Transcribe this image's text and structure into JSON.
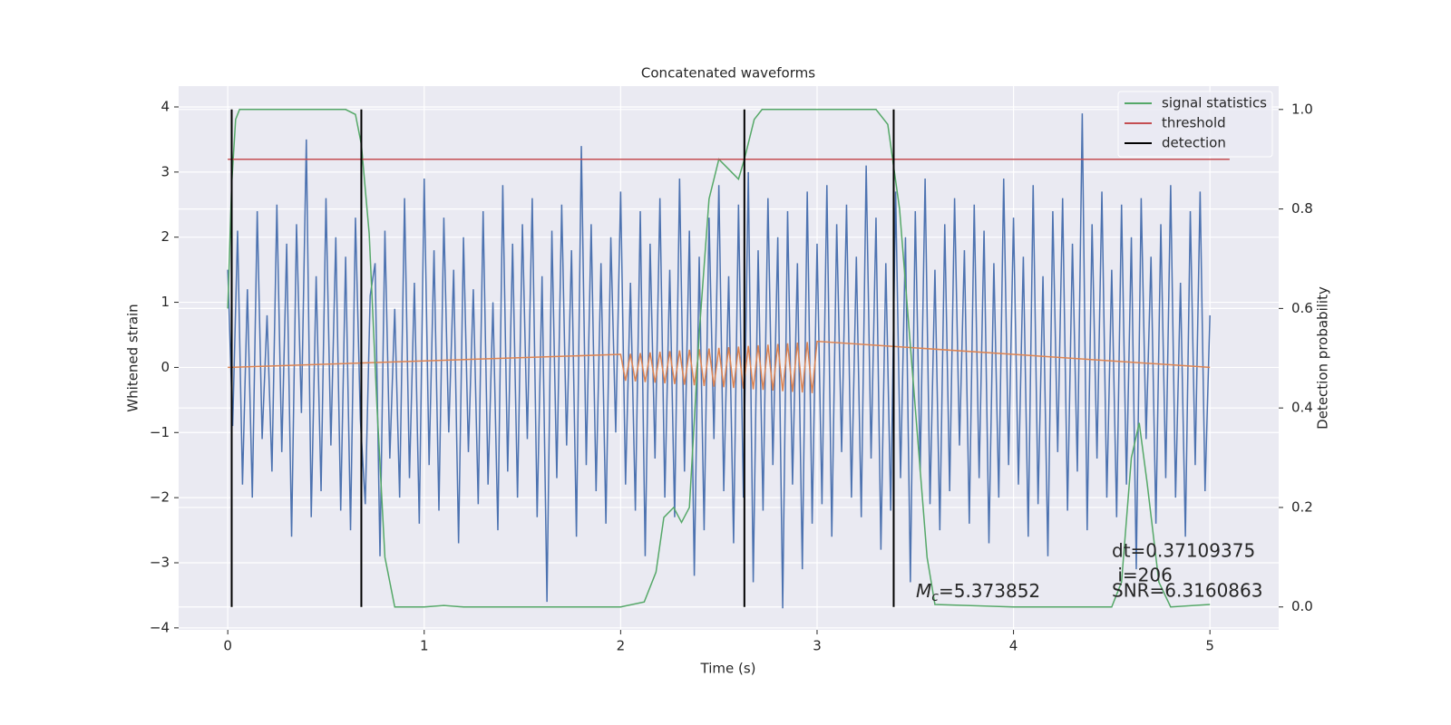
{
  "chart_data": {
    "type": "line",
    "title": "Concatenated waveforms",
    "x_label": "Time (s)",
    "y_label": "Whitened strain",
    "y2_label": "Detection probability",
    "xlim": [
      -0.25,
      5.35
    ],
    "ylim": [
      -4.03,
      4.32
    ],
    "y2lim": [
      -0.046,
      1.047
    ],
    "xticks": [
      0,
      1,
      2,
      3,
      4,
      5
    ],
    "yticks": [
      {
        "value": -4,
        "label": "−4"
      },
      {
        "value": -3,
        "label": "−3"
      },
      {
        "value": -2,
        "label": "−2"
      },
      {
        "value": -1,
        "label": "−1"
      },
      0,
      1,
      2,
      3,
      4
    ],
    "y2ticks": [
      {
        "value": 0,
        "label": "0.0"
      },
      0.2,
      0.4,
      0.6,
      0.8,
      {
        "value": 1,
        "label": "1.0"
      }
    ],
    "grid": true,
    "legend": "upper right",
    "series": [
      {
        "color": "#4c72b0",
        "x": [
          0,
          0.025,
          0.05,
          0.075,
          0.1,
          0.125,
          0.15,
          0.175,
          0.2,
          0.225,
          0.25,
          0.275,
          0.3,
          0.325,
          0.35,
          0.375,
          0.4,
          0.425,
          0.45,
          0.475,
          0.5,
          0.525,
          0.55,
          0.575,
          0.6,
          0.625,
          0.65,
          0.675,
          0.7,
          0.725,
          0.75,
          0.775,
          0.8,
          0.825,
          0.85,
          0.875,
          0.9,
          0.925,
          0.95,
          0.975,
          1,
          1.025,
          1.05,
          1.075,
          1.1,
          1.125,
          1.15,
          1.175,
          1.2,
          1.225,
          1.25,
          1.275,
          1.3,
          1.325,
          1.35,
          1.375,
          1.4,
          1.425,
          1.45,
          1.475,
          1.5,
          1.525,
          1.55,
          1.575,
          1.6,
          1.625,
          1.65,
          1.675,
          1.7,
          1.725,
          1.75,
          1.775,
          1.8,
          1.825,
          1.85,
          1.875,
          1.9,
          1.925,
          1.95,
          1.975,
          2,
          2.025,
          2.05,
          2.075,
          2.1,
          2.125,
          2.15,
          2.175,
          2.2,
          2.225,
          2.25,
          2.275,
          2.3,
          2.325,
          2.35,
          2.375,
          2.4,
          2.425,
          2.45,
          2.475,
          2.5,
          2.525,
          2.55,
          2.575,
          2.6,
          2.625,
          2.65,
          2.675,
          2.7,
          2.725,
          2.75,
          2.775,
          2.8,
          2.825,
          2.85,
          2.875,
          2.9,
          2.925,
          2.95,
          2.975,
          3,
          3.025,
          3.05,
          3.075,
          3.1,
          3.125,
          3.15,
          3.175,
          3.2,
          3.225,
          3.25,
          3.275,
          3.3,
          3.325,
          3.35,
          3.375,
          3.4,
          3.425,
          3.45,
          3.475,
          3.5,
          3.525,
          3.55,
          3.575,
          3.6,
          3.625,
          3.65,
          3.675,
          3.7,
          3.725,
          3.75,
          3.775,
          3.8,
          3.825,
          3.85,
          3.875,
          3.9,
          3.925,
          3.95,
          3.975,
          4,
          4.025,
          4.05,
          4.075,
          4.1,
          4.125,
          4.15,
          4.175,
          4.2,
          4.225,
          4.25,
          4.275,
          4.3,
          4.325,
          4.35,
          4.375,
          4.4,
          4.425,
          4.45,
          4.475,
          4.5,
          4.525,
          4.55,
          4.575,
          4.6,
          4.625,
          4.65,
          4.675,
          4.7,
          4.725,
          4.75,
          4.775,
          4.8,
          4.825,
          4.85,
          4.875,
          4.9,
          4.925,
          4.95,
          4.975,
          5
        ],
        "values": [
          1.5,
          -0.9,
          2.1,
          -1.8,
          1.2,
          -2.0,
          2.4,
          -1.1,
          0.8,
          -1.6,
          2.5,
          -1.3,
          1.9,
          -2.6,
          2.2,
          -0.7,
          3.5,
          -2.3,
          1.4,
          -1.9,
          2.6,
          -1.2,
          2.0,
          -2.2,
          1.7,
          -2.5,
          2.3,
          -0.8,
          -2.1,
          1.1,
          1.6,
          -2.9,
          2.1,
          -1.4,
          0.9,
          -2.0,
          2.6,
          -1.7,
          1.3,
          -2.4,
          2.9,
          -1.5,
          1.8,
          -2.2,
          2.3,
          -1.0,
          1.5,
          -2.7,
          2.0,
          -1.3,
          1.2,
          -2.1,
          2.4,
          -1.8,
          1.0,
          -2.5,
          2.8,
          -1.6,
          1.9,
          -2.0,
          2.2,
          -1.1,
          2.6,
          -2.3,
          1.4,
          -3.6,
          2.1,
          -1.7,
          2.5,
          -1.2,
          1.8,
          -2.6,
          3.4,
          -1.5,
          2.2,
          -1.9,
          1.6,
          -2.4,
          2.0,
          -1.0,
          2.7,
          -1.8,
          1.3,
          -2.2,
          2.4,
          -2.9,
          1.9,
          -1.4,
          2.6,
          -2.0,
          1.5,
          -2.3,
          2.9,
          -1.6,
          2.1,
          -3.2,
          1.7,
          -2.5,
          2.3,
          -1.1,
          2.8,
          -1.9,
          1.4,
          -2.7,
          2.5,
          -2.0,
          3.0,
          -3.3,
          1.8,
          -2.2,
          2.6,
          -1.5,
          2.0,
          -3.7,
          2.4,
          -1.8,
          1.6,
          -3.1,
          2.7,
          -2.4,
          1.9,
          -2.1,
          2.8,
          -2.6,
          2.2,
          -1.3,
          2.5,
          -2.0,
          1.7,
          -2.3,
          3.1,
          -1.4,
          2.3,
          -2.8,
          1.6,
          -2.2,
          2.7,
          -1.7,
          2.0,
          -3.3,
          2.4,
          -1.6,
          2.9,
          -2.1,
          1.5,
          -2.5,
          2.2,
          -1.9,
          2.6,
          -1.2,
          1.8,
          -2.4,
          2.5,
          -1.7,
          2.1,
          -2.7,
          1.6,
          -2.0,
          2.9,
          -1.5,
          2.3,
          -1.8,
          1.7,
          -2.6,
          2.8,
          -2.1,
          1.4,
          -2.9,
          2.4,
          -1.3,
          2.6,
          -2.2,
          1.9,
          -1.6,
          3.9,
          -2.5,
          2.2,
          -1.4,
          2.7,
          -2.0,
          1.5,
          -2.3,
          2.5,
          -1.8,
          2.0,
          -3.1,
          2.6,
          -1.1,
          1.7,
          -2.4,
          2.2,
          -1.7,
          2.8,
          -2.0,
          1.3,
          -2.6,
          2.4,
          -1.5,
          2.7,
          -1.9,
          0.8
        ]
      },
      {
        "color": "#dd8452",
        "x": [
          0,
          2,
          2.025,
          2.05,
          2.075,
          2.1,
          2.125,
          2.15,
          2.175,
          2.2,
          2.225,
          2.25,
          2.275,
          2.3,
          2.325,
          2.35,
          2.375,
          2.4,
          2.425,
          2.45,
          2.475,
          2.5,
          2.525,
          2.55,
          2.575,
          2.6,
          2.625,
          2.65,
          2.675,
          2.7,
          2.725,
          2.75,
          2.775,
          2.8,
          2.825,
          2.85,
          2.875,
          2.9,
          2.925,
          2.95,
          2.975,
          3,
          5
        ],
        "values": [
          0,
          0.2,
          -0.205,
          0.21,
          -0.215,
          0.22,
          -0.225,
          0.23,
          -0.235,
          0.24,
          -0.245,
          0.25,
          -0.255,
          0.26,
          -0.265,
          0.27,
          -0.275,
          0.28,
          -0.285,
          0.29,
          -0.295,
          0.3,
          -0.305,
          0.31,
          -0.315,
          0.32,
          -0.325,
          0.33,
          -0.335,
          0.34,
          -0.345,
          0.35,
          -0.355,
          0.36,
          -0.365,
          0.37,
          -0.375,
          0.38,
          -0.385,
          0.39,
          -0.395,
          0.4,
          0
        ]
      },
      {
        "name": "signal statistics",
        "color": "#55a868",
        "axis": "y2",
        "x": [
          0,
          0.02,
          0.04,
          0.06,
          0.1,
          0.3,
          0.6,
          0.65,
          0.68,
          0.72,
          0.76,
          0.8,
          0.85,
          1.0,
          1.1,
          1.2,
          1.5,
          2.0,
          2.12,
          2.18,
          2.22,
          2.27,
          2.31,
          2.35,
          2.4,
          2.45,
          2.5,
          2.55,
          2.6,
          2.63,
          2.68,
          2.72,
          3.0,
          3.3,
          3.36,
          3.42,
          3.5,
          3.56,
          3.6,
          4.0,
          4.5,
          4.55,
          4.6,
          4.64,
          4.68,
          4.74,
          4.8,
          5.0
        ],
        "values": [
          0.6,
          0.85,
          0.98,
          1.0,
          1.0,
          1.0,
          1.0,
          0.99,
          0.93,
          0.75,
          0.4,
          0.1,
          0.0,
          0.0,
          0.003,
          0.0,
          0.0,
          0.0,
          0.01,
          0.07,
          0.18,
          0.2,
          0.17,
          0.2,
          0.55,
          0.82,
          0.9,
          0.88,
          0.86,
          0.9,
          0.98,
          1.0,
          1.0,
          1.0,
          0.97,
          0.8,
          0.4,
          0.1,
          0.005,
          0.0,
          0.0,
          0.05,
          0.3,
          0.37,
          0.25,
          0.05,
          0.0,
          0.005
        ]
      },
      {
        "name": "threshold",
        "color": "#c44e52",
        "axis": "y2",
        "x": [
          0,
          5.1
        ],
        "values": [
          0.9,
          0.9
        ]
      },
      {
        "name": "detection",
        "color": "#000000",
        "axis": "y2",
        "type": "vlines",
        "x": [
          0.02,
          0.68,
          2.63,
          3.39
        ],
        "ymin": 0,
        "ymax": 1
      }
    ],
    "annotations": {
      "dt": "dt=0.37109375",
      "i": " i=206",
      "snr": "SNR=6.3160863",
      "mc": {
        "symbol": "M",
        "subscript": "c",
        "text": "=5.373852"
      }
    }
  }
}
